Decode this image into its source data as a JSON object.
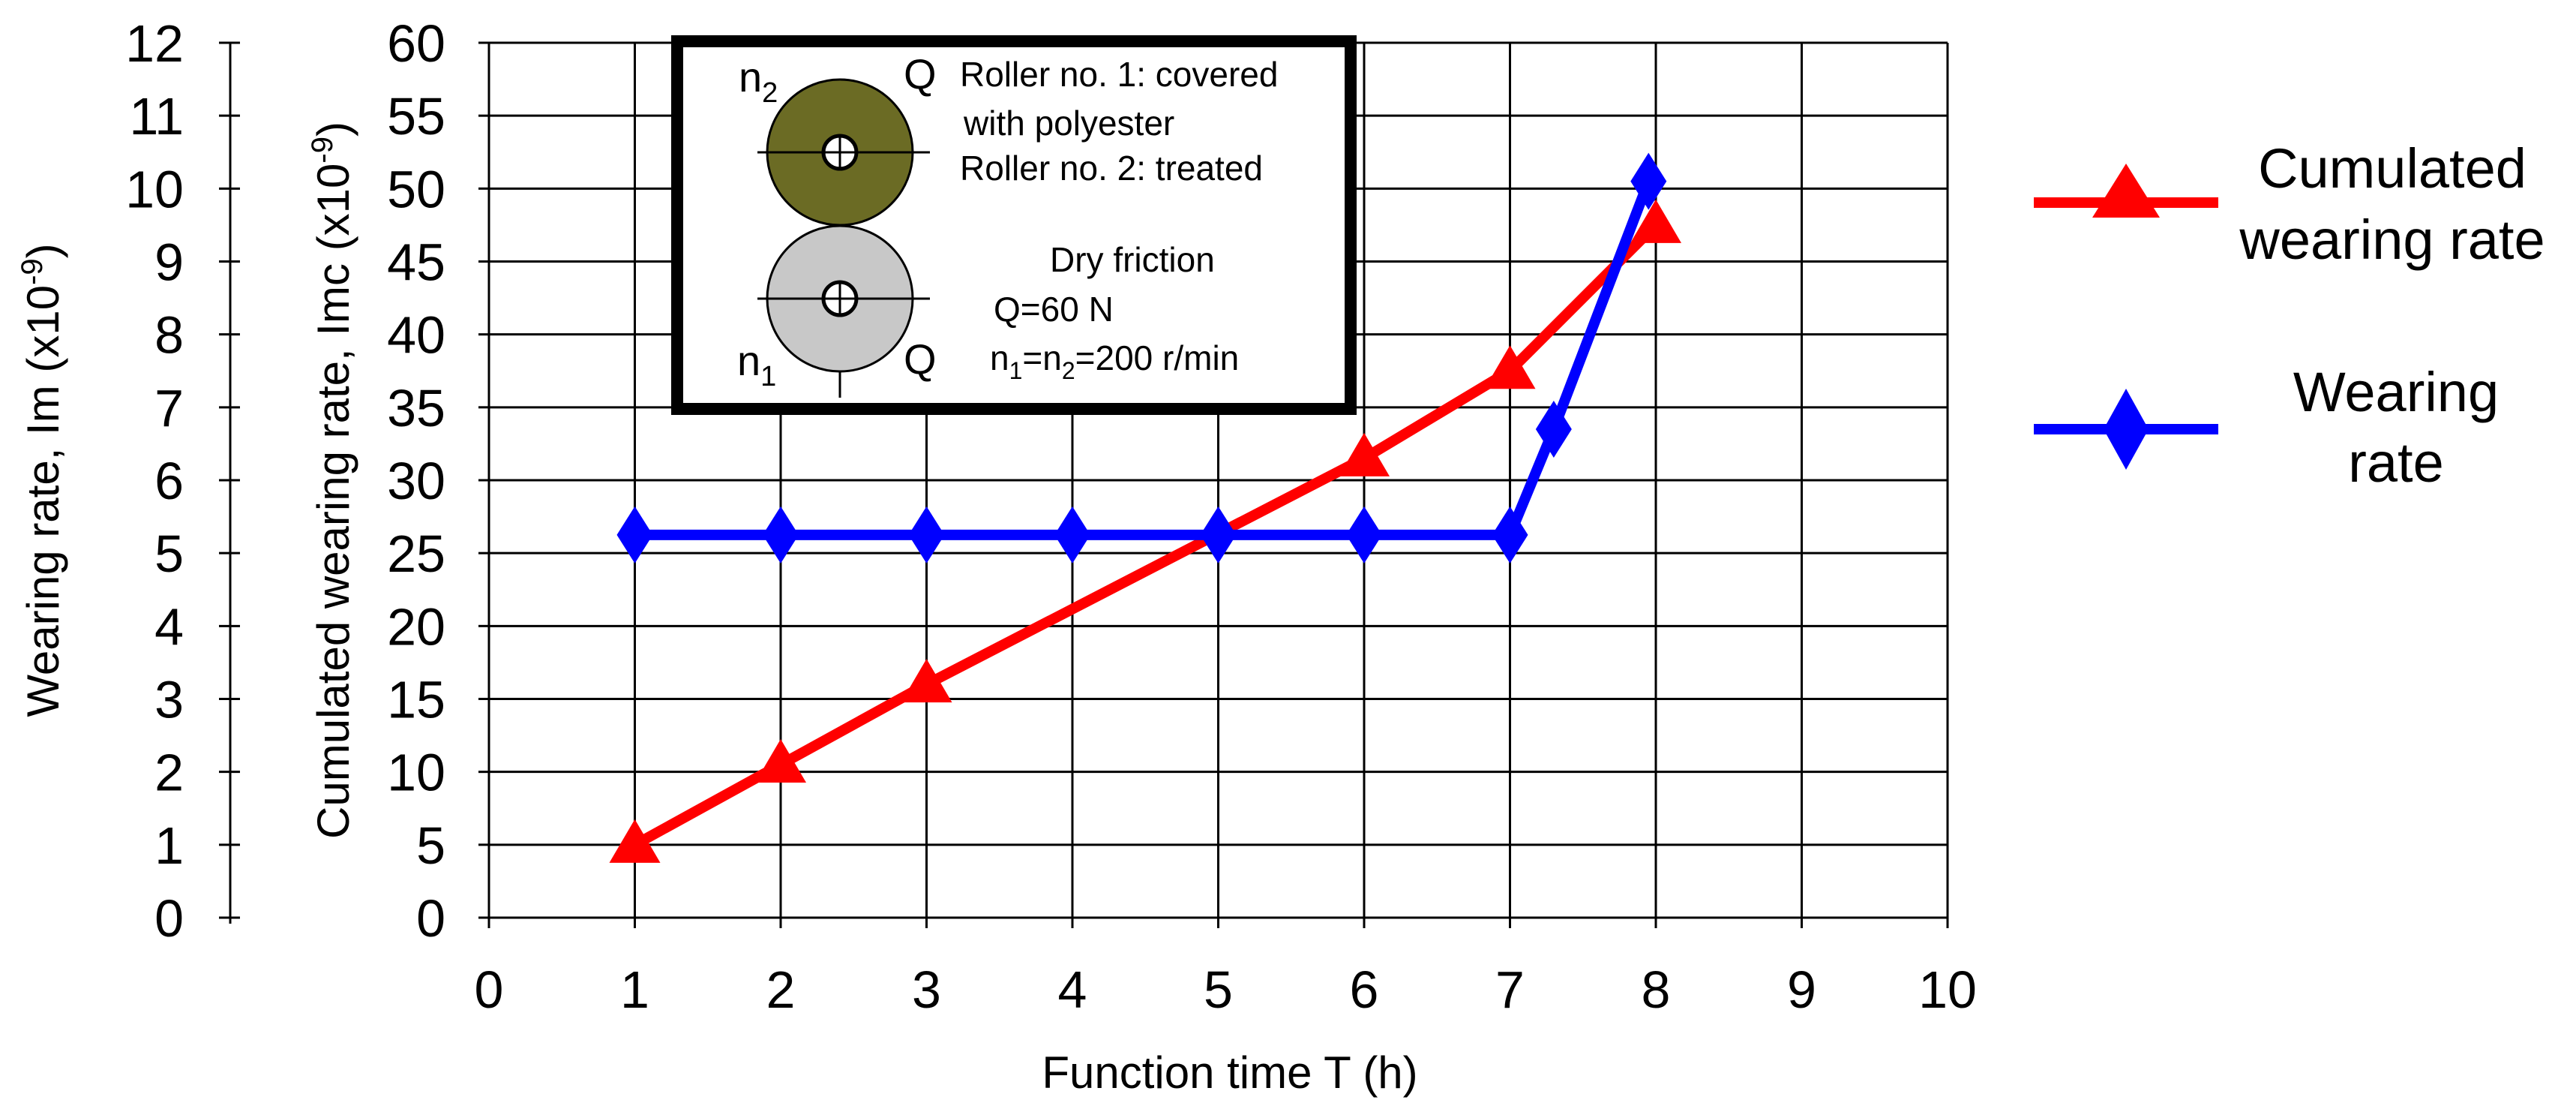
{
  "chart_data": {
    "type": "line",
    "xlabel": "Function time T (h)",
    "ylabel_left": "Wearing rate, Im (x10",
    "ylabel_left_exp": "-9",
    "ylabel_left_close": ")",
    "ylabel_right": "Cumulated wearing rate, Imc (x10",
    "ylabel_right_exp": "-9",
    "ylabel_right_close": ")",
    "xlim": [
      0,
      10
    ],
    "ylim_left": [
      0,
      12
    ],
    "ylim_right": [
      0,
      60
    ],
    "x_ticks": [
      "0",
      "1",
      "2",
      "3",
      "4",
      "5",
      "6",
      "7",
      "8",
      "9",
      "10"
    ],
    "y_ticks_left": [
      "0",
      "1",
      "2",
      "3",
      "4",
      "5",
      "6",
      "7",
      "8",
      "9",
      "10",
      "11",
      "12"
    ],
    "y_ticks_right": [
      "0",
      "5",
      "10",
      "15",
      "20",
      "25",
      "30",
      "35",
      "40",
      "45",
      "50",
      "55",
      "60"
    ],
    "grid": true,
    "legend_position": "right",
    "series": [
      {
        "name": "Cumulated wearing rate",
        "name_line1": "Cumulated",
        "name_line2": "wearing rate",
        "axis": "right",
        "color": "#ff0000",
        "marker": "triangle",
        "x": [
          1,
          2,
          3,
          6,
          7,
          8
        ],
        "y": [
          5,
          10.5,
          16,
          31.5,
          37.5,
          47.5
        ]
      },
      {
        "name": "Wearing rate",
        "name_line1": "Wearing",
        "name_line2": "rate",
        "axis": "left",
        "color": "#0000ff",
        "marker": "diamond",
        "x": [
          1,
          2,
          3,
          4,
          5,
          6,
          7,
          7.3,
          7.95
        ],
        "y": [
          5.25,
          5.25,
          5.25,
          5.25,
          5.25,
          5.25,
          5.25,
          6.7,
          10.1
        ]
      }
    ],
    "inset": {
      "n_top": "n",
      "n_top_sub": "2",
      "n_bottom": "n",
      "n_bottom_sub": "1",
      "q_top": "Q",
      "q_bottom": "Q",
      "line1": "Roller no. 1: covered",
      "line2": "with polyester",
      "line3": "Roller no. 2: treated",
      "line4": "Dry friction",
      "line5": "Q=60 N",
      "line6_a": "n",
      "line6_sub1": "1",
      "line6_b": "=n",
      "line6_sub2": "2",
      "line6_c": "=200 r/min",
      "roller_top_color": "#6b6b24",
      "roller_bottom_color": "#c8c8c8"
    }
  }
}
